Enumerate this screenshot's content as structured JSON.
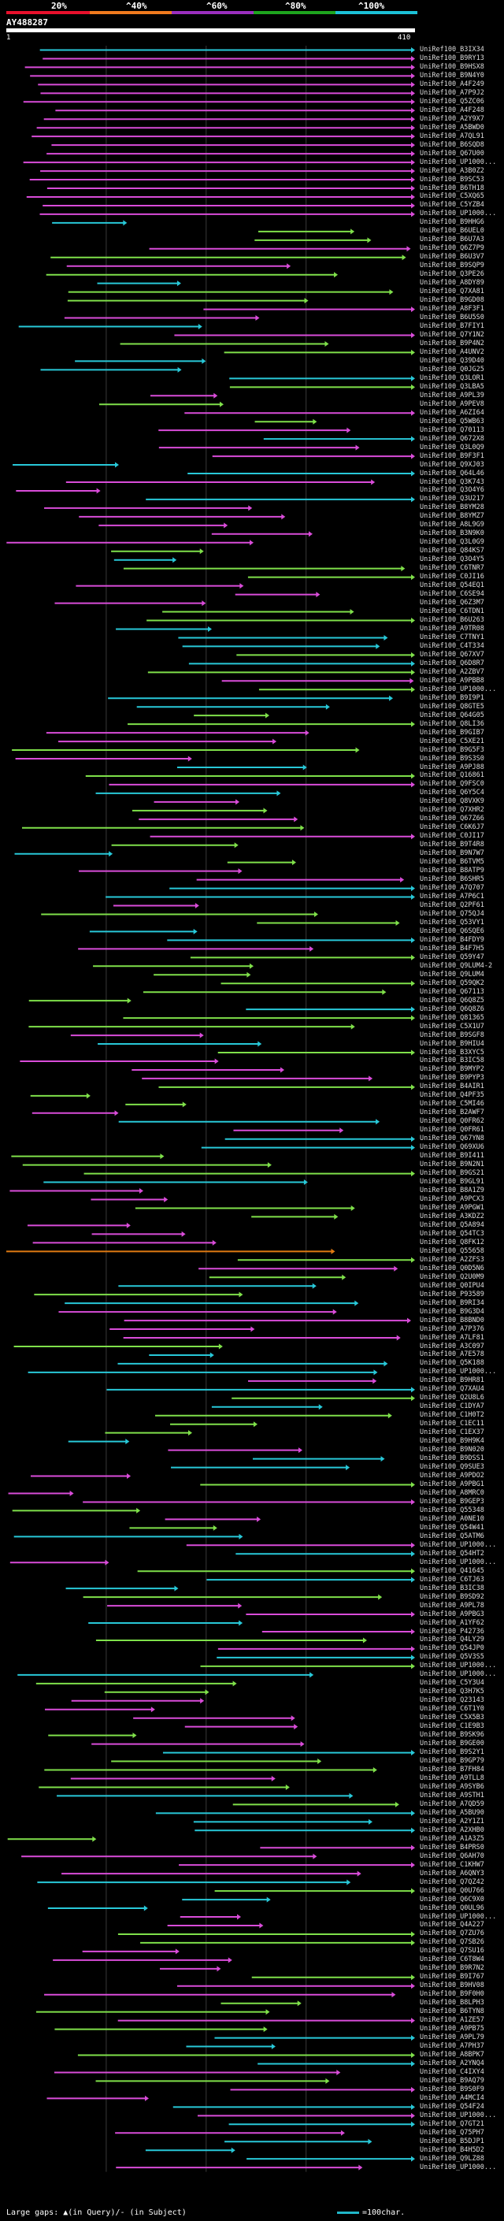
{
  "header": {
    "legend_pcts": [
      "20%",
      "^40%",
      "^60%",
      "^80%",
      "^100%"
    ],
    "band_colors": [
      "#e8102c",
      "#f07a1e",
      "#9b2fbf",
      "#1ea51e",
      "#1cc2d8"
    ],
    "query_id": "AY488287",
    "start": "1",
    "end": "410"
  },
  "query_length": 410,
  "colors": {
    "magenta": "#d94cd9",
    "green": "#7fe04a",
    "cyan": "#28c8d8",
    "orange": "#e07a12",
    "query": "#ffffff",
    "grid": "#3a3a3a"
  },
  "names": [
    "UniRef100_B3IX34",
    "UniRef100_B9RY13",
    "UniRef100_B9HSX8",
    "UniRef100_B9N4Y0",
    "UniRef100_A4F249",
    "UniRef100_A7P9J2",
    "UniRef100_Q5ZC06",
    "UniRef100_A4F248",
    "UniRef100_A2Y9X7",
    "UniRef100_A5BWD0",
    "UniRef100_A7QL91",
    "UniRef100_B6SQD8",
    "UniRef100_Q67U00",
    "UniRef100_UP1000...",
    "UniRef100_A3B0Z2",
    "UniRef100_B9SC53",
    "UniRef100_B6TH18",
    "UniRef100_C5XQ65",
    "UniRef100_C5YZB4",
    "UniRef100_UP1000...",
    "UniRef100_B9HHG6",
    "UniRef100_B6UEL0",
    "UniRef100_B6U7A3",
    "UniRef100_Q6Z7P9",
    "UniRef100_B6U3V7",
    "UniRef100_B9SQP9",
    "UniRef100_Q3PE26",
    "UniRef100_A8DY89",
    "UniRef100_Q7XA81",
    "UniRef100_B9GD08",
    "UniRef100_A8F3F1",
    "UniRef100_B6U5S0",
    "UniRef100_B7FIY1",
    "UniRef100_Q7Y1N2",
    "UniRef100_B9P4N2",
    "UniRef100_A4UNV2",
    "UniRef100_Q39D40",
    "UniRef100_Q0JG25",
    "UniRef100_Q3LOR1",
    "UniRef100_Q3LBA5",
    "UniRef100_A9PL39",
    "UniRef100_A9PEV8",
    "UniRef100_A6ZI64",
    "UniRef100_Q5WB63",
    "UniRef100_Q70113",
    "UniRef100_Q672X8",
    "UniRef100_Q3L0Q9",
    "UniRef100_B9F3F1",
    "UniRef100_Q9XJ03",
    "UniRef100_Q64L46",
    "UniRef100_Q3K743",
    "UniRef100_Q3O4Y6",
    "UniRef100_Q3U217",
    "UniRef100_B8YM28",
    "UniRef100_B8YMZ7",
    "UniRef100_A8L9G9",
    "UniRef100_B3N9K0",
    "UniRef100_Q3L0G9",
    "UniRef100_Q84KS7",
    "UniRef100_Q3O4Y5",
    "UniRef100_C6TNR7",
    "UniRef100_C0JI16",
    "UniRef100_Q54EQ1",
    "UniRef100_C6SE94",
    "UniRef100_Q6Z3M7",
    "UniRef100_C6TDN1",
    "UniRef100_B6U263",
    "UniRef100_A9TR08",
    "UniRef100_C7TNY1",
    "UniRef100_C4T334",
    "UniRef100_Q67XV7",
    "UniRef100_Q6D8R7",
    "UniRef100_A2ZBV7",
    "UniRef100_A9PBB8",
    "UniRef100_UP1000...",
    "UniRef100_B9I9P1",
    "UniRef100_Q8GTE5",
    "UniRef100_Q64G05",
    "UniRef100_Q8LI36",
    "UniRef100_B9GIB7",
    "UniRef100_C5XE21",
    "UniRef100_B9G5F3",
    "UniRef100_B9S3S0",
    "UniRef100_A9PJ88",
    "UniRef100_Q16861",
    "UniRef100_Q9FSC0",
    "UniRef100_Q6Y5C4",
    "UniRef100_Q8VXK9",
    "UniRef100_Q7XHR2",
    "UniRef100_Q67Z66",
    "UniRef100_C6K6J7",
    "UniRef100_C0JI17",
    "UniRef100_B9T4R8",
    "UniRef100_B9N7W7",
    "UniRef100_B6TVM5",
    "UniRef100_B8ATP9",
    "UniRef100_B6SHR5",
    "UniRef100_A7Q707",
    "UniRef100_A7P6C1",
    "UniRef100_Q2PF61",
    "UniRef100_Q75QJ4",
    "UniRef100_Q53VY1",
    "UniRef100_Q6SQE6",
    "UniRef100_B4FDY9",
    "UniRef100_B4F7H5",
    "UniRef100_Q59Y47",
    "UniRef100_Q9LUM4-2",
    "UniRef100_Q9LUM4",
    "UniRef100_Q59QK2",
    "UniRef100_Q67113",
    "UniRef100_Q6Q8Z5",
    "UniRef100_Q6Q8Z6",
    "UniRef100_Q81365",
    "UniRef100_C5X1U7",
    "UniRef100_B9SGF8",
    "UniRef100_B9HIU4",
    "UniRef100_B3XYC5",
    "UniRef100_B3IC58",
    "UniRef100_B9MYP2",
    "UniRef100_B9PYP3",
    "UniRef100_B4AIR1",
    "UniRef100_Q4PF35",
    "UniRef100_C5MI46",
    "UniRef100_B2AWF7",
    "UniRef100_Q0FR62",
    "UniRef100_Q0FR61",
    "UniRef100_Q67YN8",
    "UniRef100_Q69XU6",
    "UniRef100_B9I411",
    "UniRef100_B9N2N1",
    "UniRef100_B9GS21",
    "UniRef100_B9GL91",
    "UniRef100_B8A1Z9",
    "UniRef100_A9PCX3",
    "UniRef100_A9PGW1",
    "UniRef100_A3KDZ2",
    "UniRef100_Q5A894",
    "UniRef100_Q54TC3",
    "UniRef100_Q8FK12",
    "UniRef100_Q55658",
    "UniRef100_A2ZFS3",
    "UniRef100_Q0D5N6",
    "UniRef100_Q2U0M9",
    "UniRef100_Q0IPU4",
    "UniRef100_P93589",
    "UniRef100_B9RI34",
    "UniRef100_B9G3D4",
    "UniRef100_B8BND0",
    "UniRef100_A7P376",
    "UniRef100_A7LF81",
    "UniRef100_A3C097",
    "UniRef100_A7E578",
    "UniRef100_Q5K188",
    "UniRef100_UP1000...",
    "UniRef100_B9HR81",
    "UniRef100_Q7XAU4",
    "UniRef100_Q2U8L6",
    "UniRef100_C1DYA7",
    "UniRef100_C1H0T2",
    "UniRef100_C1EC11",
    "UniRef100_C1EX37",
    "UniRef100_B9H9K4",
    "UniRef100_B9N020",
    "UniRef100_B9DSS1",
    "UniRef100_Q9SUE3",
    "UniRef100_A9PDO2",
    "UniRef100_A9PBG1",
    "UniRef100_A8MRC0",
    "UniRef100_B9GEP3",
    "UniRef100_Q55348",
    "UniRef100_A0NE10",
    "UniRef100_Q54W41",
    "UniRef100_Q5ATM6",
    "UniRef100_UP1000...",
    "UniRef100_Q54HT2",
    "UniRef100_UP1000...",
    "UniRef100_Q41645",
    "UniRef100_C6TJ63",
    "UniRef100_B3IC38",
    "UniRef100_B9SD92",
    "UniRef100_A9PL78",
    "UniRef100_A9PBG3",
    "UniRef100_A1YF62",
    "UniRef100_P42736",
    "UniRef100_Q4LY29",
    "UniRef100_Q54JP0",
    "UniRef100_Q5V3S5",
    "UniRef100_UP1000...",
    "UniRef100_UP1000...",
    "UniRef100_C5Y3U4",
    "UniRef100_Q3H7K5",
    "UniRef100_Q23143",
    "UniRef100_C6T1Y0",
    "UniRef100_C5X5B3",
    "UniRef100_C1E9B3",
    "UniRef100_B9SK96",
    "UniRef100_B9GE00",
    "UniRef100_B9S2Y1",
    "UniRef100_B9GP79",
    "UniRef100_B7FH84",
    "UniRef100_A9TLL8",
    "UniRef100_A9SYB6",
    "UniRef100_A9STH1",
    "UniRef100_A7QD59",
    "UniRef100_A5BU90",
    "UniRef100_A2Y1Z1",
    "UniRef100_A2XHB0",
    "UniRef100_A1A3Z5",
    "UniRef100_B4PRS0",
    "UniRef100_Q6AH70",
    "UniRef100_C1KHW7",
    "UniRef100_A6QNY3",
    "UniRef100_Q7QZ42",
    "UniRef100_Q0U766",
    "UniRef100_Q6C9X0",
    "UniRef100_Q0UL96",
    "UniRef100_UP1000...",
    "UniRef100_Q4A227",
    "UniRef100_Q7ZU76",
    "UniRef100_Q7SB26",
    "UniRef100_Q7SU16",
    "UniRef100_C6T8W4",
    "UniRef100_B9R7N2",
    "UniRef100_B9I767",
    "UniRef100_B9HV08",
    "UniRef100_B9F0H0",
    "UniRef100_B8LPH3",
    "UniRef100_B6TYN8",
    "UniRef100_A1ZE57",
    "UniRef100_A9PB75",
    "UniRef100_A9PL79",
    "UniRef100_A7PH37",
    "UniRef100_A8BPK7",
    "UniRef100_A2YNQ4",
    "UniRef100_C4IXY4",
    "UniRef100_B9AQ79",
    "UniRef100_B9S0F9",
    "UniRef100_A4MCI4",
    "UniRef100_Q54F24",
    "UniRef100_UP1000...",
    "UniRef100_Q7GT21",
    "UniRef100_Q75PH7",
    "UniRef100_B5DJP1",
    "UniRef100_B4H5D2",
    "UniRef100_Q9LZ88",
    "UniRef100_UP1000..."
  ],
  "legend": {
    "left": "Large gaps: ▲(in Query)/- (in Subject)",
    "right": "=100char."
  }
}
